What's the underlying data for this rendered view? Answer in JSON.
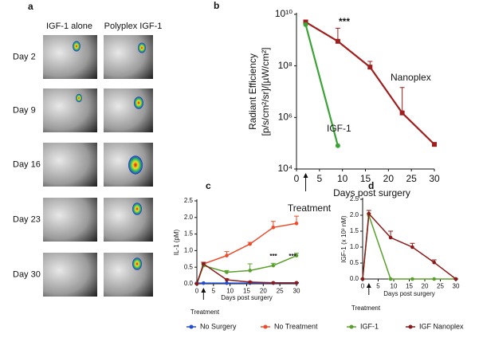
{
  "panel_a": {
    "label": "a",
    "columns": [
      "IGF-1 alone",
      "Polyplex IGF-1"
    ],
    "rows": [
      "Day 2",
      "Day 9",
      "Day 16",
      "Day 23",
      "Day 30"
    ]
  },
  "chart_data": [
    {
      "type": "line",
      "panel_label": "b",
      "ylabel": [
        "Radiant Efficiency",
        "[p/s/cm²/sr]/[µW/cm²]"
      ],
      "xlabel": "Days post surgery",
      "yscale": "log",
      "xlim": [
        0,
        30
      ],
      "xticks": [
        0,
        5,
        10,
        15,
        20,
        25,
        30
      ],
      "ylim": [
        10000,
        10000000000
      ],
      "yticks": [
        {
          "value": 10000,
          "label": "10⁴"
        },
        {
          "value": 1000000,
          "label": "10⁶"
        },
        {
          "value": 100000000,
          "label": "10⁸"
        },
        {
          "value": 10000000000,
          "label": "10¹⁰"
        }
      ],
      "series": [
        {
          "name": "Nanoplex",
          "color": "#a01e1e",
          "marker": "square",
          "x": [
            2,
            9,
            16,
            23,
            30
          ],
          "values": [
            5000000000,
            900000000,
            90000000,
            1500000,
            90000
          ],
          "errors": [
            1000000000,
            2000000000,
            60000000,
            13000000,
            0
          ]
        },
        {
          "name": "IGF-1",
          "color": "#3aa335",
          "marker": "circle",
          "x": [
            2,
            9
          ],
          "values": [
            4000000000,
            80000
          ]
        }
      ],
      "annotations": [
        "***"
      ],
      "treatment_label": "Treatment"
    },
    {
      "type": "line",
      "panel_label": "c",
      "ylabel": "IL-1 (pM)",
      "xlabel": "Days post surgery",
      "xlim": [
        0,
        30
      ],
      "xticks": [
        0,
        5,
        10,
        15,
        20,
        25,
        30
      ],
      "ylim": [
        0,
        2.5
      ],
      "yticks": [
        {
          "value": 0,
          "label": "0.0"
        },
        0.5,
        {
          "value": 1,
          "label": "1.0"
        },
        1.5,
        {
          "value": 2,
          "label": "2.0"
        },
        2.5
      ],
      "x": [
        0,
        2,
        9,
        16,
        23,
        30
      ],
      "series": [
        {
          "name": "No Surgery",
          "color": "#1f4fd0",
          "values": [
            0.02,
            0.02,
            0.02,
            0.02,
            0.02,
            0.02
          ],
          "errors": [
            0,
            0,
            0,
            0,
            0,
            0
          ]
        },
        {
          "name": "No Treatment",
          "color": "#ee4b2b",
          "values": [
            0,
            0.6,
            0.85,
            1.2,
            1.7,
            1.82
          ],
          "errors": [
            0,
            0.05,
            0.12,
            0.05,
            0.18,
            0.22
          ]
        },
        {
          "name": "IGF-1",
          "color": "#5aa02c",
          "values": [
            0,
            0.55,
            0.35,
            0.4,
            0.55,
            0.85
          ],
          "errors": [
            0,
            0.05,
            0.05,
            0.2,
            0.07,
            0.07
          ]
        },
        {
          "name": "IGF Nanoplex",
          "color": "#8b1a1a",
          "values": [
            0,
            0.6,
            0.12,
            0.05,
            0.03,
            0.03
          ],
          "errors": [
            0,
            0.05,
            0.03,
            0.02,
            0.01,
            0.01
          ]
        }
      ],
      "annotations": [
        "***",
        "***"
      ],
      "treatment_label": "Treatment"
    },
    {
      "type": "line",
      "panel_label": "d",
      "ylabel": "IGF-1 (x 10³ nM)",
      "xlabel": "Days post surgery",
      "xlim": [
        0,
        30
      ],
      "xticks": [
        0,
        5,
        10,
        15,
        20,
        25,
        30
      ],
      "ylim": [
        0,
        2.5
      ],
      "yticks": [
        {
          "value": 0,
          "label": "0.0"
        },
        0.5,
        {
          "value": 1,
          "label": "1.0"
        },
        1.5,
        {
          "value": 2,
          "label": "2.0"
        },
        2.5
      ],
      "x": [
        0,
        2,
        9,
        16,
        23,
        30
      ],
      "series": [
        {
          "color": "#5aa02c",
          "values": [
            0,
            2.0,
            0,
            0,
            0,
            0
          ],
          "errors": [
            0,
            0.05,
            0,
            0,
            0,
            0
          ]
        },
        {
          "color": "#8b1a1a",
          "values": [
            0,
            2.05,
            1.3,
            1.0,
            0.52,
            0
          ],
          "errors": [
            0,
            0.1,
            0.2,
            0.12,
            0.08,
            0
          ]
        }
      ],
      "treatment_label": "Treatment"
    }
  ]
}
